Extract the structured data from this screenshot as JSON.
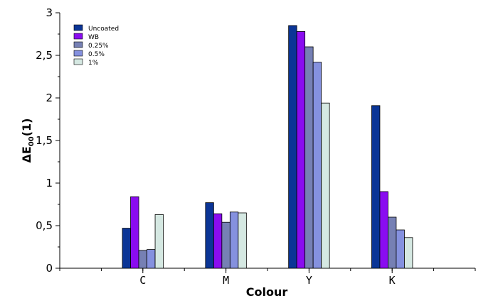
{
  "chart_data": {
    "type": "bar",
    "title": "",
    "xlabel": "Colour",
    "ylabel": "ΔE",
    "ylabel_sub": "00",
    "ylabel_suffix": "(1)",
    "ylim": [
      0,
      3
    ],
    "yticks": [
      0,
      0.5,
      1,
      1.5,
      2,
      2.5,
      3
    ],
    "ytick_labels": [
      "0",
      "0,5",
      "1",
      "1,5",
      "2",
      "2,5",
      "3"
    ],
    "categories": [
      "C",
      "M",
      "Y",
      "K"
    ],
    "legend_position": "top-left",
    "grid": false,
    "series": [
      {
        "name": "Uncoated",
        "color": "#0b3596",
        "values": [
          0.47,
          0.77,
          2.85,
          1.91
        ]
      },
      {
        "name": "WB",
        "color": "#8a0cf0",
        "values": [
          0.84,
          0.64,
          2.78,
          0.9
        ]
      },
      {
        "name": "0.25%",
        "color": "#7680b4",
        "values": [
          0.21,
          0.54,
          2.6,
          0.6
        ]
      },
      {
        "name": "0.5%",
        "color": "#8591df",
        "values": [
          0.22,
          0.66,
          2.42,
          0.45
        ]
      },
      {
        "name": "1%",
        "color": "#d5e8e2",
        "values": [
          0.63,
          0.65,
          1.94,
          0.36
        ]
      }
    ]
  }
}
